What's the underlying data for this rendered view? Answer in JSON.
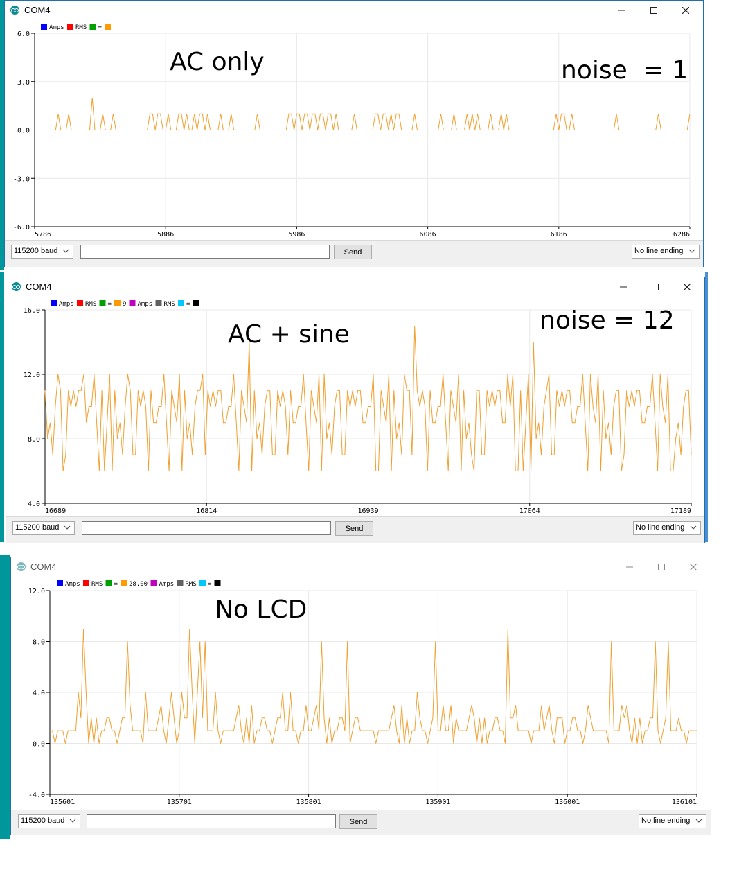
{
  "colors": {
    "trace": "#f0a030",
    "axis": "#000000",
    "grid": "#e8e8e8",
    "legend_blue": "#0000ff",
    "legend_red": "#ff0000",
    "legend_green": "#00a000",
    "legend_orange": "#ff9a00",
    "legend_magenta": "#c000c0",
    "legend_gray": "#606060",
    "legend_cyan": "#00c8ff",
    "legend_black": "#000000"
  },
  "windows": [
    {
      "title": "COM4",
      "annotation": "AC only",
      "noise_label": "noise  = 1",
      "legend": [
        {
          "color": "legend_blue",
          "label": "Amps"
        },
        {
          "color": "legend_red",
          "label": "RMS"
        },
        {
          "color": "legend_green",
          "label": "="
        },
        {
          "color": "legend_orange",
          "label": ""
        }
      ],
      "baud": "115200 baud",
      "input_value": "",
      "send_label": "Send",
      "line_ending": "No line ending",
      "chart_data": {
        "type": "line",
        "ylim": [
          -6,
          6
        ],
        "yticks": [
          "-6.0",
          "-3.0",
          "0.0",
          "3.0",
          "6.0"
        ],
        "xticks": [
          "5786",
          "5886",
          "5986",
          "6086",
          "6186",
          "6286"
        ],
        "series": [
          {
            "color": "trace",
            "x_range": [
              5786,
              6286
            ],
            "baseline": 0,
            "spikes": [
              [
                5804,
                1
              ],
              [
                5813,
                1
              ],
              [
                5830,
                2
              ],
              [
                5839,
                1
              ],
              [
                5846,
                1
              ],
              [
                5874,
                1
              ],
              [
                5877,
                1
              ],
              [
                5880,
                1
              ],
              [
                5883,
                1
              ],
              [
                5889,
                1
              ],
              [
                5896,
                1
              ],
              [
                5899,
                1
              ],
              [
                5902,
                1
              ],
              [
                5909,
                1
              ],
              [
                5912,
                1
              ],
              [
                5915,
                1
              ],
              [
                5918,
                1
              ],
              [
                5928,
                1
              ],
              [
                5937,
                1
              ],
              [
                5957,
                1
              ],
              [
                5980,
                1
              ],
              [
                5983,
                1
              ],
              [
                5986,
                1
              ],
              [
                5989,
                1
              ],
              [
                5992,
                1
              ],
              [
                5995,
                1
              ],
              [
                5998,
                1
              ],
              [
                6001,
                1
              ],
              [
                6004,
                1
              ],
              [
                6007,
                1
              ],
              [
                6010,
                1
              ],
              [
                6013,
                1
              ],
              [
                6016,
                1
              ],
              [
                6030,
                1
              ],
              [
                6046,
                1
              ],
              [
                6049,
                1
              ],
              [
                6052,
                1
              ],
              [
                6055,
                1
              ],
              [
                6058,
                1
              ],
              [
                6062,
                1
              ],
              [
                6065,
                1
              ],
              [
                6076,
                1
              ],
              [
                6096,
                1
              ],
              [
                6106,
                1
              ],
              [
                6116,
                1
              ],
              [
                6121,
                1
              ],
              [
                6125,
                1
              ],
              [
                6134,
                1
              ],
              [
                6143,
                1
              ],
              [
                6146,
                1
              ],
              [
                6184,
                1
              ],
              [
                6188,
                1
              ],
              [
                6191,
                1
              ],
              [
                6196,
                1
              ],
              [
                6231,
                1
              ],
              [
                6262,
                1
              ],
              [
                6286,
                1
              ]
            ]
          }
        ]
      }
    },
    {
      "title": "COM4",
      "annotation": "AC + sine",
      "noise_label": "noise = 12",
      "legend": [
        {
          "color": "legend_blue",
          "label": "Amps"
        },
        {
          "color": "legend_red",
          "label": "RMS"
        },
        {
          "color": "legend_green",
          "label": "="
        },
        {
          "color": "legend_orange",
          "label": "9"
        },
        {
          "color": "legend_magenta",
          "label": "Amps"
        },
        {
          "color": "legend_gray",
          "label": "RMS"
        },
        {
          "color": "legend_cyan",
          "label": "="
        },
        {
          "color": "legend_black",
          "label": ""
        }
      ],
      "baud": "115200 baud",
      "input_value": "",
      "send_label": "Send",
      "line_ending": "No line ending",
      "chart_data": {
        "type": "line",
        "ylim": [
          4,
          16
        ],
        "yticks": [
          "4.0",
          "8.0",
          "12.0",
          "16.0"
        ],
        "xticks": [
          "16689",
          "16814",
          "16939",
          "17064",
          "17189"
        ],
        "series": [
          {
            "color": "trace",
            "x_range": [
              16689,
              17189
            ],
            "levels": [
              11,
              10,
              9,
              12,
              7,
              11,
              10,
              8,
              11,
              9,
              6,
              10,
              11,
              12,
              9,
              7,
              10,
              11
            ],
            "spikes": [
              [
                16695,
                7
              ],
              [
                16700,
                12
              ],
              [
                16703,
                6
              ],
              [
                16720,
                12
              ],
              [
                16735,
                6
              ],
              [
                16754,
                12
              ],
              [
                16769,
                6
              ],
              [
                16812,
                12
              ],
              [
                16848,
                14
              ],
              [
                16878,
                7
              ],
              [
                16906,
                12
              ],
              [
                16945,
                6
              ],
              [
                16967,
                12
              ],
              [
                16976,
                15
              ],
              [
                16985,
                6
              ],
              [
                16998,
                12
              ],
              [
                17022,
                6
              ],
              [
                17048,
                12
              ],
              [
                17053,
                6
              ],
              [
                17060,
                6
              ],
              [
                17067,
                14
              ],
              [
                17080,
                12
              ],
              [
                17112,
                12
              ],
              [
                17135,
                6
              ],
              [
                17166,
                12
              ],
              [
                17176,
                6
              ]
            ]
          }
        ]
      }
    },
    {
      "title": "COM4",
      "annotation": "No LCD",
      "noise_label": "",
      "legend": [
        {
          "color": "legend_blue",
          "label": "Amps"
        },
        {
          "color": "legend_red",
          "label": "RMS"
        },
        {
          "color": "legend_green",
          "label": "="
        },
        {
          "color": "legend_orange",
          "label": "28.00"
        },
        {
          "color": "legend_magenta",
          "label": "Amps"
        },
        {
          "color": "legend_gray",
          "label": "RMS"
        },
        {
          "color": "legend_cyan",
          "label": "="
        },
        {
          "color": "legend_black",
          "label": ""
        }
      ],
      "baud": "115200 baud",
      "input_value": "",
      "send_label": "Send",
      "line_ending": "No line ending",
      "chart_data": {
        "type": "line",
        "ylim": [
          -4,
          12
        ],
        "yticks": [
          "-4.0",
          "0.0",
          "4.0",
          "8.0",
          "12.0"
        ],
        "xticks": [
          "135601",
          "135701",
          "135801",
          "135901",
          "136001",
          "136101"
        ],
        "series": [
          {
            "color": "trace",
            "x_range": [
              135601,
              136101
            ],
            "levels": [
              1,
              2,
              1,
              1,
              0,
              2,
              1,
              1,
              2,
              1,
              0,
              1,
              2,
              1,
              1,
              3,
              1,
              2,
              1,
              0
            ],
            "spikes": [
              [
                135606,
                0
              ],
              [
                135623,
                4
              ],
              [
                135627,
                9
              ],
              [
                135630,
                4
              ],
              [
                135661,
                8
              ],
              [
                135664,
                3
              ],
              [
                135675,
                4
              ],
              [
                135696,
                4
              ],
              [
                135703,
                4
              ],
              [
                135709,
                9
              ],
              [
                135712,
                4
              ],
              [
                135715,
                4
              ],
              [
                135718,
                8
              ],
              [
                135721,
                8
              ],
              [
                135730,
                4
              ],
              [
                135758,
                3
              ],
              [
                135781,
                4
              ],
              [
                135788,
                4
              ],
              [
                135799,
                3
              ],
              [
                135811,
                8
              ],
              [
                135832,
                8
              ],
              [
                135874,
                3
              ],
              [
                135885,
                4
              ],
              [
                135899,
                8
              ],
              [
                135905,
                3
              ],
              [
                135911,
                3
              ],
              [
                135916,
                2
              ],
              [
                135929,
                2
              ],
              [
                135956,
                9
              ],
              [
                135961,
                3
              ],
              [
                135982,
                3
              ],
              [
                135996,
                2
              ],
              [
                136017,
                3
              ],
              [
                136035,
                8
              ],
              [
                136043,
                3
              ],
              [
                136070,
                8
              ],
              [
                136080,
                8
              ],
              [
                136088,
                2
              ]
            ]
          }
        ]
      }
    }
  ]
}
